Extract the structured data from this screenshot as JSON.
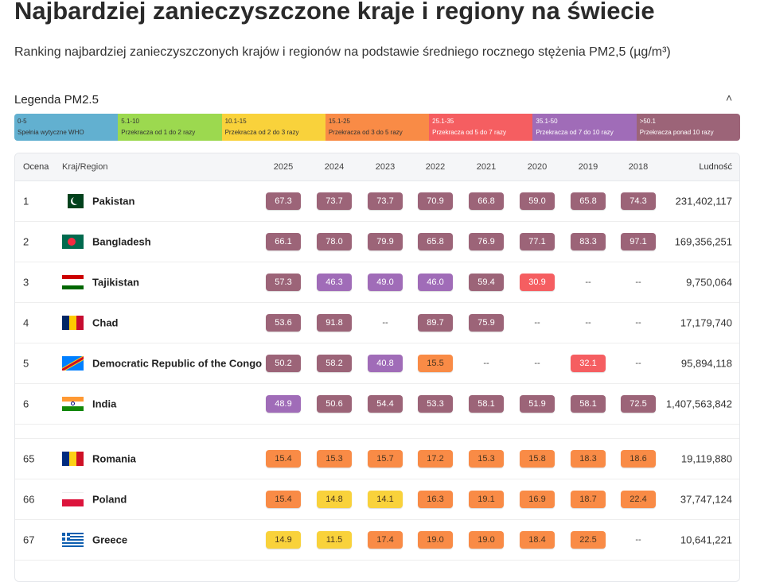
{
  "title": "Najbardziej zanieczyszczone kraje i regiony na świecie",
  "subtitle": "Ranking najbardziej zanieczyszczonych krajów i regionów na podstawie średniego rocznego stężenia PM2,5 (µg/m³)",
  "legend": {
    "title": "Legenda PM2.5",
    "toggle_icon": "chevron-up-icon",
    "items": [
      {
        "range": "0-5",
        "desc": "Spełnia wytyczne WHO",
        "color": "#62b0d0"
      },
      {
        "range": "5.1-10",
        "desc": "Przekracza od 1 do 2 razy",
        "color": "#9cd94f"
      },
      {
        "range": "10.1-15",
        "desc": "Przekracza od 2 do 3 razy",
        "color": "#f9d23b"
      },
      {
        "range": "15.1-25",
        "desc": "Przekracza od 3 do 5 razy",
        "color": "#f98b46"
      },
      {
        "range": "25.1-35",
        "desc": "Przekracza od 5 do 7 razy",
        "color": "#f55e61"
      },
      {
        "range": "35.1-50",
        "desc": "Przekracza od 7 do 10 razy",
        "color": "#a06cb8"
      },
      {
        "range": ">50.1",
        "desc": "Przekracza ponad 10 razy",
        "color": "#9c6478"
      }
    ]
  },
  "table": {
    "headers": {
      "rank": "Ocena",
      "country": "Kraj/Region",
      "years": [
        "2025",
        "2024",
        "2023",
        "2022",
        "2021",
        "2020",
        "2019",
        "2018"
      ],
      "population": "Ludność"
    },
    "rows": [
      {
        "rank": "1",
        "country": "Pakistan",
        "flag": "pk",
        "values": [
          "67.3",
          "73.7",
          "73.7",
          "70.9",
          "66.8",
          "59.0",
          "65.8",
          "74.3"
        ],
        "population": "231,402,117"
      },
      {
        "rank": "2",
        "country": "Bangladesh",
        "flag": "bd",
        "values": [
          "66.1",
          "78.0",
          "79.9",
          "65.8",
          "76.9",
          "77.1",
          "83.3",
          "97.1"
        ],
        "population": "169,356,251"
      },
      {
        "rank": "3",
        "country": "Tajikistan",
        "flag": "tj",
        "values": [
          "57.3",
          "46.3",
          "49.0",
          "46.0",
          "59.4",
          "30.9",
          "--",
          "--"
        ],
        "population": "9,750,064"
      },
      {
        "rank": "4",
        "country": "Chad",
        "flag": "td",
        "values": [
          "53.6",
          "91.8",
          "--",
          "89.7",
          "75.9",
          "--",
          "--",
          "--"
        ],
        "population": "17,179,740"
      },
      {
        "rank": "5",
        "country": "Democratic Republic of the Congo",
        "flag": "cd",
        "values": [
          "50.2",
          "58.2",
          "40.8",
          "15.5",
          "--",
          "--",
          "32.1",
          "--"
        ],
        "population": "95,894,118"
      },
      {
        "rank": "6",
        "country": "India",
        "flag": "in",
        "values": [
          "48.9",
          "50.6",
          "54.4",
          "53.3",
          "58.1",
          "51.9",
          "58.1",
          "72.5"
        ],
        "population": "1,407,563,842"
      },
      {
        "rank": "65",
        "country": "Romania",
        "flag": "ro",
        "values": [
          "15.4",
          "15.3",
          "15.7",
          "17.2",
          "15.3",
          "15.8",
          "18.3",
          "18.6"
        ],
        "population": "19,119,880"
      },
      {
        "rank": "66",
        "country": "Poland",
        "flag": "pl",
        "values": [
          "15.4",
          "14.8",
          "14.1",
          "16.3",
          "19.1",
          "16.9",
          "18.7",
          "22.4"
        ],
        "population": "37,747,124"
      },
      {
        "rank": "67",
        "country": "Greece",
        "flag": "gr",
        "values": [
          "14.9",
          "11.5",
          "17.4",
          "19.0",
          "19.0",
          "18.4",
          "22.5",
          "--"
        ],
        "population": "10,641,221"
      }
    ]
  }
}
